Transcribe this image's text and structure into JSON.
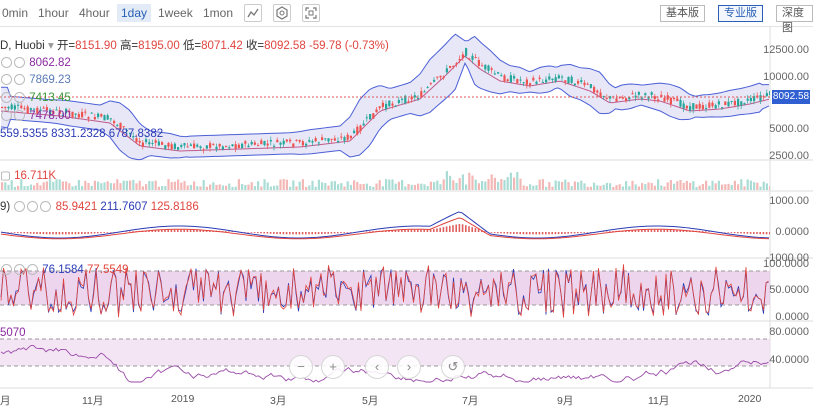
{
  "toolbar": {
    "intervals": [
      "0min",
      "1hour",
      "4hour",
      "1day",
      "1week",
      "1mon"
    ],
    "active_interval": "1day",
    "views": [
      "基本版",
      "专业版",
      "深度图"
    ],
    "active_view": "专业版"
  },
  "main_legend": {
    "symbol": "D, Huobi",
    "open_label": "开=",
    "open": "8151.90",
    "high_label": "高=",
    "high": "8195.00",
    "low_label": "低=",
    "low": "8071.42",
    "close_label": "收=",
    "close": "8092.58",
    "change": "-59.78 (-0.73%)",
    "ma_values": [
      "8062.82",
      "7869.23",
      "7413.45",
      "7478.00"
    ],
    "boll_values": [
      "559.5355",
      "8331.2328",
      "6787.8382"
    ]
  },
  "main_axis": [
    "12500.00",
    "10000.00",
    "7500.00",
    "5000.00",
    "2500.00"
  ],
  "last_price": "8092.58",
  "volume_legend": "16.711K",
  "macd_legend": {
    "params": "9)",
    "values": [
      "85.9421",
      "211.7607",
      "125.8186"
    ]
  },
  "macd_axis": [
    "1000.00",
    "0.0000",
    "-1000.00"
  ],
  "kdj_legend": {
    "values": [
      "76.1584",
      "77.5549"
    ]
  },
  "kdj_axis": [
    "100.0000",
    "50.0000",
    "0.0000"
  ],
  "rsi_legend": "5070",
  "rsi_axis": [
    "80.0000",
    "40.0000"
  ],
  "x_axis": [
    "月",
    "11月",
    "2019",
    "3月",
    "5月",
    "7月",
    "9月",
    "11月",
    "2020"
  ],
  "colors": {
    "up": "#26a69a",
    "down": "#ef5350",
    "boll": "#4b5fd6",
    "accent": "#2a5fb5"
  }
}
